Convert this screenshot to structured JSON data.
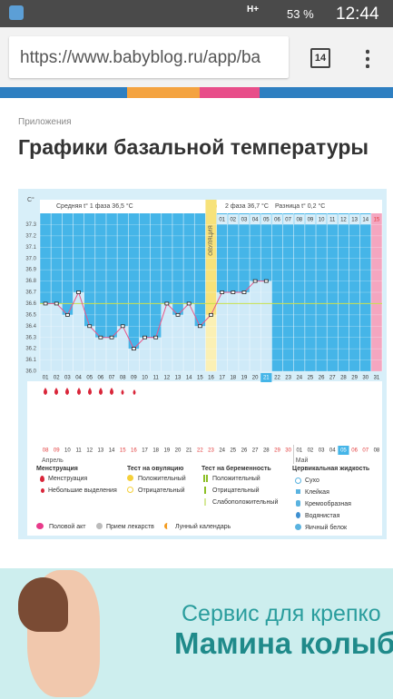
{
  "status_bar": {
    "network": "H+",
    "battery": "53 %",
    "time": "12:44"
  },
  "browser": {
    "url": "https://www.babyblog.ru/app/ba",
    "tabs": "14"
  },
  "page": {
    "breadcrumb": "Приложения",
    "title": "Графики базальной температуры"
  },
  "chart_data": {
    "type": "line",
    "y_unit": "C°",
    "phase1_label": "Средняя t° 1 фаза 36,5 °C",
    "phase2_label": "2 фаза 36,7 °C",
    "diff_label": "Разница t° 0,2 °C",
    "ovulation_label": "ОВУЛЯЦИЯ",
    "categories": [
      "01",
      "02",
      "03",
      "04",
      "05",
      "06",
      "07",
      "08",
      "09",
      "10",
      "11",
      "12",
      "13",
      "14",
      "15",
      "16",
      "17",
      "18",
      "19",
      "20",
      "21",
      "22",
      "23",
      "24",
      "25",
      "26",
      "27",
      "28",
      "29",
      "30",
      "31"
    ],
    "phase2_days": [
      "01",
      "02",
      "03",
      "04",
      "05",
      "06",
      "07",
      "08",
      "09",
      "10",
      "11",
      "12",
      "13",
      "14",
      "15"
    ],
    "dates": [
      "08",
      "09",
      "10",
      "11",
      "12",
      "13",
      "14",
      "15",
      "16",
      "17",
      "18",
      "19",
      "20",
      "21",
      "22",
      "23",
      "24",
      "25",
      "26",
      "27",
      "28",
      "29",
      "30",
      "01",
      "02",
      "03",
      "04",
      "05",
      "06",
      "07",
      "08"
    ],
    "date_colors": [
      "#e23b3b",
      "#e23b3b",
      "#333",
      "#333",
      "#333",
      "#333",
      "#333",
      "#e23b3b",
      "#e23b3b",
      "#333",
      "#333",
      "#333",
      "#333",
      "#333",
      "#e23b3b",
      "#e23b3b",
      "#333",
      "#333",
      "#333",
      "#333",
      "#333",
      "#e23b3b",
      "#e23b3b",
      "#333",
      "#333",
      "#333",
      "#333",
      "#333",
      "#e23b3b",
      "#e23b3b",
      "#333"
    ],
    "months": [
      "Апрель",
      "Май"
    ],
    "series": [
      {
        "color": "#e8578a",
        "values": [
          36.6,
          36.6,
          36.5,
          36.7,
          36.4,
          36.3,
          36.3,
          36.4,
          36.2,
          36.3,
          36.3,
          36.6,
          36.5,
          36.6,
          36.4,
          36.5,
          36.7,
          36.7,
          36.7,
          36.8,
          36.8,
          null,
          null,
          null,
          null,
          null,
          null,
          null,
          null,
          null,
          null
        ]
      }
    ],
    "coverline": 36.6,
    "ylim": [
      36.0,
      37.4
    ],
    "yticks": [
      {
        "value": 36.0,
        "label": "36.0"
      },
      36.1,
      36.2,
      36.3,
      36.4,
      36.5,
      36.6,
      36.7,
      36.8,
      36.9,
      {
        "value": 37.0,
        "label": "37.0"
      },
      37.1,
      37.2,
      37.3
    ],
    "grid": true
  },
  "legend": {
    "menstruation": {
      "title": "Менструация",
      "items": [
        "Менструация",
        "Небольшие выделения"
      ]
    },
    "ovulation_test": {
      "title": "Тест на овуляцию",
      "items": [
        "Положительный",
        "Отрицательный"
      ]
    },
    "pregnancy_test": {
      "title": "Тест на беременность",
      "items": [
        "Положительный",
        "Отрицательный",
        "Слабоположительный"
      ]
    },
    "cervical": {
      "title": "Цервикальная жидкость",
      "items": [
        "Сухо",
        "Клейкая",
        "Кремообразная",
        "Водянистая",
        "Яичный белок"
      ]
    },
    "extra": [
      "Половой акт",
      "Прием лекарств",
      "Лунный календарь"
    ]
  },
  "banner": {
    "line1": "Сервис для крепко",
    "line2": "Мамина колыбе"
  }
}
